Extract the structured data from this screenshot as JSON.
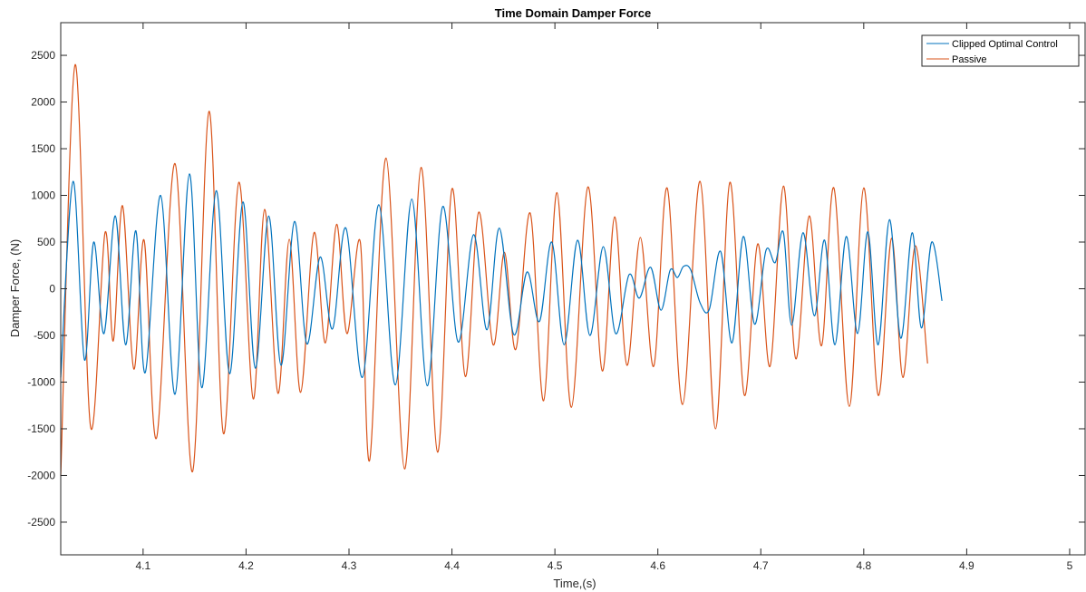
{
  "chart_data": {
    "type": "line",
    "title": "Time Domain Damper Force",
    "xlabel": "Time,(s)",
    "ylabel": "Damper Force, (N)",
    "xlim": [
      4.02,
      5.015
    ],
    "ylim": [
      -2850,
      2850
    ],
    "xticks": [
      4.1,
      4.2,
      4.3,
      4.4,
      4.5,
      4.6,
      4.7,
      4.8,
      4.9,
      5
    ],
    "xtick_labels": [
      "4.1",
      "4.2",
      "4.3",
      "4.4",
      "4.5",
      "4.6",
      "4.7",
      "4.8",
      "4.9",
      "5"
    ],
    "yticks": [
      2500,
      2000,
      1500,
      1000,
      500,
      0,
      -500,
      -1000,
      -1500,
      -2000,
      -2500
    ],
    "ytick_labels": [
      "2500",
      "2000",
      "1500",
      "1000",
      "500",
      "0",
      "-500",
      "-1000",
      "-1500",
      "-2000",
      "-2500"
    ],
    "grid": false,
    "legend_position": "top-right",
    "series": [
      {
        "name": "Clipped Optimal Control",
        "color": "#0072BD",
        "points": [
          [
            4.02,
            -950
          ],
          [
            4.032,
            1150
          ],
          [
            4.043,
            -760
          ],
          [
            4.052,
            500
          ],
          [
            4.062,
            -480
          ],
          [
            4.073,
            780
          ],
          [
            4.083,
            -600
          ],
          [
            4.093,
            620
          ],
          [
            4.102,
            -900
          ],
          [
            4.117,
            1000
          ],
          [
            4.131,
            -1130
          ],
          [
            4.145,
            1230
          ],
          [
            4.157,
            -1060
          ],
          [
            4.171,
            1050
          ],
          [
            4.184,
            -910
          ],
          [
            4.197,
            930
          ],
          [
            4.209,
            -850
          ],
          [
            4.222,
            780
          ],
          [
            4.234,
            -820
          ],
          [
            4.247,
            720
          ],
          [
            4.259,
            -590
          ],
          [
            4.272,
            340
          ],
          [
            4.284,
            -430
          ],
          [
            4.297,
            650
          ],
          [
            4.313,
            -950
          ],
          [
            4.329,
            900
          ],
          [
            4.345,
            -1030
          ],
          [
            4.361,
            960
          ],
          [
            4.376,
            -1040
          ],
          [
            4.391,
            880
          ],
          [
            4.406,
            -570
          ],
          [
            4.421,
            580
          ],
          [
            4.434,
            -440
          ],
          [
            4.446,
            650
          ],
          [
            4.46,
            -490
          ],
          [
            4.473,
            180
          ],
          [
            4.485,
            -350
          ],
          [
            4.497,
            500
          ],
          [
            4.509,
            -600
          ],
          [
            4.522,
            520
          ],
          [
            4.534,
            -500
          ],
          [
            4.547,
            450
          ],
          [
            4.559,
            -480
          ],
          [
            4.572,
            150
          ],
          [
            4.582,
            -100
          ],
          [
            4.593,
            230
          ],
          [
            4.603,
            -230
          ],
          [
            4.612,
            200
          ],
          [
            4.619,
            120
          ],
          [
            4.625,
            240
          ],
          [
            4.632,
            200
          ],
          [
            4.641,
            -150
          ],
          [
            4.65,
            -220
          ],
          [
            4.661,
            400
          ],
          [
            4.672,
            -580
          ],
          [
            4.683,
            560
          ],
          [
            4.694,
            -380
          ],
          [
            4.705,
            410
          ],
          [
            4.714,
            280
          ],
          [
            4.722,
            600
          ],
          [
            4.73,
            -390
          ],
          [
            4.741,
            600
          ],
          [
            4.752,
            -290
          ],
          [
            4.762,
            520
          ],
          [
            4.772,
            -600
          ],
          [
            4.783,
            560
          ],
          [
            4.794,
            -480
          ],
          [
            4.804,
            610
          ],
          [
            4.814,
            -600
          ],
          [
            4.825,
            740
          ],
          [
            4.836,
            -530
          ],
          [
            4.847,
            600
          ],
          [
            4.856,
            -420
          ],
          [
            4.866,
            500
          ],
          [
            4.876,
            -130
          ]
        ]
      },
      {
        "name": "Passive",
        "color": "#D95319",
        "points": [
          [
            4.02,
            -2000
          ],
          [
            4.034,
            2400
          ],
          [
            4.049,
            -1480
          ],
          [
            4.063,
            600
          ],
          [
            4.071,
            -560
          ],
          [
            4.08,
            890
          ],
          [
            4.091,
            -860
          ],
          [
            4.101,
            520
          ],
          [
            4.113,
            -1600
          ],
          [
            4.131,
            1340
          ],
          [
            4.148,
            -1960
          ],
          [
            4.164,
            1900
          ],
          [
            4.178,
            -1550
          ],
          [
            4.193,
            1140
          ],
          [
            4.207,
            -1180
          ],
          [
            4.218,
            850
          ],
          [
            4.231,
            -1120
          ],
          [
            4.242,
            530
          ],
          [
            4.253,
            -1110
          ],
          [
            4.266,
            600
          ],
          [
            4.277,
            -580
          ],
          [
            4.288,
            690
          ],
          [
            4.298,
            -480
          ],
          [
            4.311,
            500
          ],
          [
            4.32,
            -1840
          ],
          [
            4.336,
            1400
          ],
          [
            4.354,
            -1930
          ],
          [
            4.37,
            1300
          ],
          [
            4.386,
            -1750
          ],
          [
            4.4,
            1070
          ],
          [
            4.413,
            -940
          ],
          [
            4.426,
            820
          ],
          [
            4.44,
            -600
          ],
          [
            4.451,
            390
          ],
          [
            4.462,
            -650
          ],
          [
            4.476,
            810
          ],
          [
            4.489,
            -1200
          ],
          [
            4.502,
            1030
          ],
          [
            4.516,
            -1270
          ],
          [
            4.532,
            1090
          ],
          [
            4.546,
            -880
          ],
          [
            4.558,
            770
          ],
          [
            4.57,
            -820
          ],
          [
            4.583,
            550
          ],
          [
            4.596,
            -830
          ],
          [
            4.609,
            1080
          ],
          [
            4.624,
            -1240
          ],
          [
            4.641,
            1150
          ],
          [
            4.656,
            -1500
          ],
          [
            4.67,
            1140
          ],
          [
            4.684,
            -1140
          ],
          [
            4.697,
            480
          ],
          [
            4.709,
            -830
          ],
          [
            4.722,
            1100
          ],
          [
            4.734,
            -750
          ],
          [
            4.747,
            780
          ],
          [
            4.759,
            -610
          ],
          [
            4.771,
            1080
          ],
          [
            4.786,
            -1260
          ],
          [
            4.8,
            1080
          ],
          [
            4.814,
            -1140
          ],
          [
            4.827,
            540
          ],
          [
            4.838,
            -950
          ],
          [
            4.85,
            460
          ],
          [
            4.862,
            -800
          ]
        ]
      }
    ]
  }
}
